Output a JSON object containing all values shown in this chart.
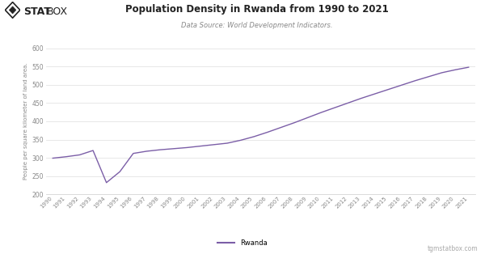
{
  "title": "Population Density in Rwanda from 1990 to 2021",
  "subtitle": "Data Source: World Development Indicators.",
  "ylabel": "People per square kilometer of land area.",
  "legend_label": "Rwanda",
  "watermark": "tgmstatbox.com",
  "line_color": "#7B5EA7",
  "bg_color": "#ffffff",
  "plot_bg_color": "#ffffff",
  "grid_color": "#dddddd",
  "ylim": [
    200,
    600
  ],
  "yticks": [
    200,
    250,
    300,
    350,
    400,
    450,
    500,
    550,
    600
  ],
  "years": [
    1990,
    1991,
    1992,
    1993,
    1994,
    1995,
    1996,
    1997,
    1998,
    1999,
    2000,
    2001,
    2002,
    2003,
    2004,
    2005,
    2006,
    2007,
    2008,
    2009,
    2010,
    2011,
    2012,
    2013,
    2014,
    2015,
    2016,
    2017,
    2018,
    2019,
    2020,
    2021
  ],
  "values": [
    299,
    303,
    308,
    320,
    232,
    262,
    312,
    318,
    322,
    325,
    328,
    332,
    336,
    340,
    348,
    358,
    370,
    383,
    396,
    410,
    424,
    437,
    450,
    463,
    475,
    487,
    499,
    511,
    522,
    533,
    541,
    548
  ]
}
